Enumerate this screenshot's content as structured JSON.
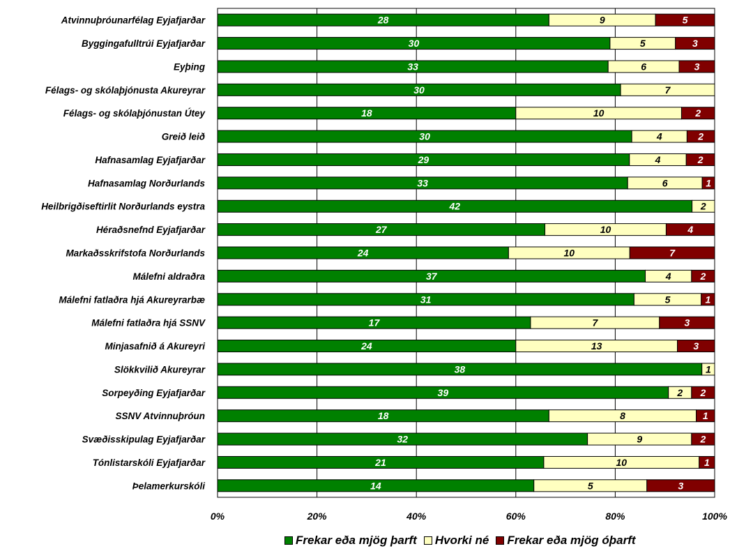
{
  "chart_data": {
    "type": "bar",
    "orientation": "horizontal",
    "stacked": "percent",
    "categories": [
      "Atvinnuþróunarfélag Eyjafjarðar",
      "Byggingafulltrúi Eyjafjarðar",
      "Eyþing",
      "Félags- og skólaþjónusta Akureyrar",
      "Félags- og skólaþjónustan Útey",
      "Greið leið",
      "Hafnasamlag Eyjafjarðar",
      "Hafnasamlag Norðurlands",
      "Heilbrigðiseftirlit Norðurlands eystra",
      "Héraðsnefnd Eyjafjarðar",
      "Markaðsskrifstofa Norðurlands",
      "Málefni aldraðra",
      "Málefni fatlaðra hjá Akureyrarbæ",
      "Málefni fatlaðra hjá SSNV",
      "Minjasafnið á Akureyri",
      "Slökkvilið Akureyrar",
      "Sorpeyðing Eyjafjarðar",
      "SSNV Atvinnuþróun",
      "Svæðisskipulag Eyjafjarðar",
      "Tónlistarskóli Eyjafjarðar",
      "Þelamerkurskóli"
    ],
    "series": [
      {
        "name": "Frekar eða mjög þarft",
        "color": "#008000",
        "label_color": "#ffffff",
        "values": [
          28,
          30,
          33,
          30,
          18,
          30,
          29,
          33,
          42,
          27,
          24,
          37,
          31,
          17,
          24,
          38,
          39,
          18,
          32,
          21,
          14
        ]
      },
      {
        "name": "Hvorki né",
        "color": "#ffffc0",
        "label_color": "#000000",
        "values": [
          9,
          5,
          6,
          7,
          10,
          4,
          4,
          6,
          2,
          10,
          10,
          4,
          5,
          7,
          13,
          1,
          2,
          8,
          9,
          10,
          5
        ]
      },
      {
        "name": "Frekar eða mjög óþarft",
        "color": "#800000",
        "label_color": "#ffffff",
        "values": [
          5,
          3,
          3,
          0,
          2,
          2,
          2,
          1,
          0,
          4,
          7,
          2,
          1,
          3,
          3,
          0,
          2,
          1,
          2,
          1,
          3
        ]
      }
    ],
    "x_ticks": [
      "0%",
      "20%",
      "40%",
      "60%",
      "80%",
      "100%"
    ],
    "xlim": [
      0,
      100
    ],
    "grid": "vertical",
    "legend_position": "bottom"
  }
}
